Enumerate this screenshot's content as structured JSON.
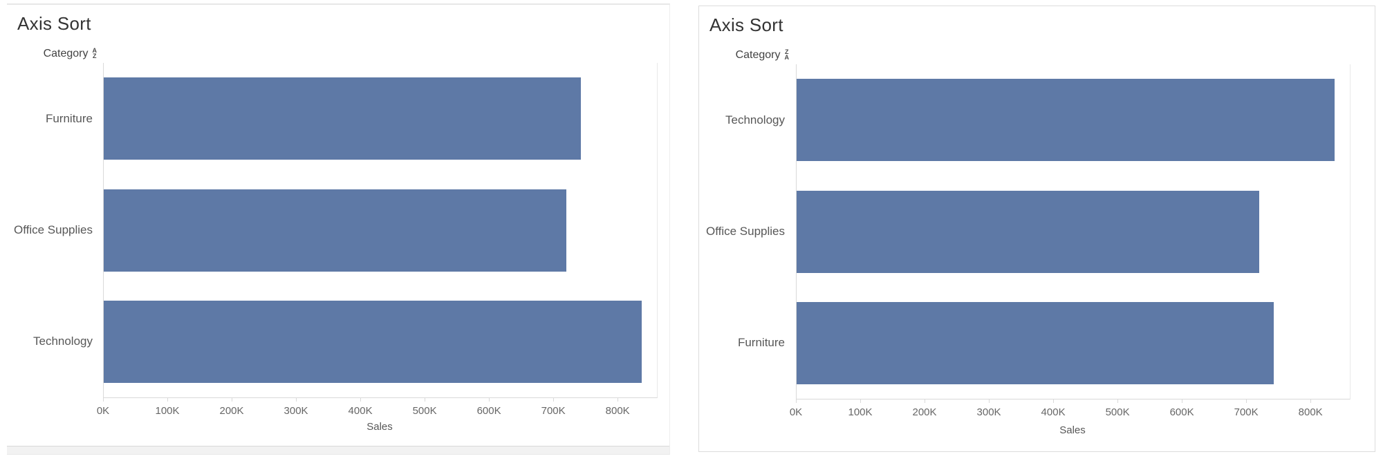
{
  "page": {
    "background": "#ffffff"
  },
  "ui": {
    "sort_icons": [
      {
        "name": "sort-ascending-icon",
        "top": "A",
        "bottom": "Z"
      },
      {
        "name": "sort-descending-icon",
        "top": "Z",
        "bottom": "A"
      }
    ]
  },
  "colors": {
    "bar": "#5e79a6",
    "title_text": "#333333",
    "category_text": "#575757",
    "tick_text": "#666666",
    "axis_line": "#d9d9d9",
    "card_border": "#dcdcdc",
    "scrollbar_track": "#f2f2f2"
  },
  "chart_data": [
    {
      "type": "bar",
      "orientation": "horizontal",
      "title": "Axis Sort",
      "field": "Category",
      "sort": "alphabetical ascending (A-Z)",
      "categories": [
        "Furniture",
        "Office Supplies",
        "Technology"
      ],
      "values": [
        742000,
        719000,
        836000
      ],
      "xlabel": "Sales",
      "ylabel": "Category",
      "xlim": [
        0,
        860000
      ],
      "x_ticks": [
        "0K",
        "100K",
        "200K",
        "300K",
        "400K",
        "500K",
        "600K",
        "700K",
        "800K"
      ],
      "tick_step": 100000,
      "grid": false,
      "legend": false,
      "bar_color": "#5e79a6"
    },
    {
      "type": "bar",
      "orientation": "horizontal",
      "title": "Axis Sort",
      "field": "Category",
      "sort": "alphabetical descending (Z-A)",
      "categories": [
        "Technology",
        "Office Supplies",
        "Furniture"
      ],
      "values": [
        836000,
        719000,
        742000
      ],
      "xlabel": "Sales",
      "ylabel": "Category",
      "xlim": [
        0,
        860000
      ],
      "x_ticks": [
        "0K",
        "100K",
        "200K",
        "300K",
        "400K",
        "500K",
        "600K",
        "700K",
        "800K"
      ],
      "tick_step": 100000,
      "grid": false,
      "legend": false,
      "bar_color": "#5e79a6"
    }
  ]
}
